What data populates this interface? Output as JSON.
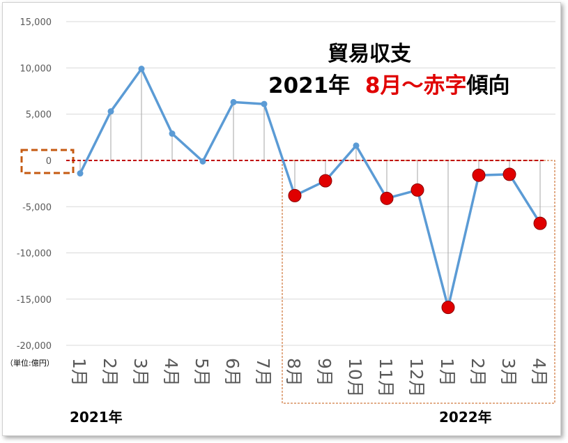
{
  "chart_data": {
    "type": "line",
    "title_line1": "貿易収支",
    "title_line2": {
      "part1": "2021年",
      "part2_red": "8月～赤字",
      "part3": "傾向"
    },
    "unit_label": "（単位:億円）",
    "categories": [
      "1月",
      "2月",
      "3月",
      "4月",
      "5月",
      "6月",
      "7月",
      "8月",
      "9月",
      "10月",
      "11月",
      "12月",
      "1月",
      "2月",
      "3月",
      "4月"
    ],
    "values": [
      -1400,
      5300,
      9900,
      2900,
      -100,
      6300,
      6100,
      -3800,
      -2200,
      1600,
      -4100,
      -3200,
      -15900,
      -1600,
      -1500,
      -6800
    ],
    "deficit_from_index": 7,
    "ylim": [
      -20000,
      15000
    ],
    "yticks": [
      15000,
      10000,
      5000,
      0,
      -5000,
      -10000,
      -15000,
      -20000
    ],
    "ytick_labels": [
      "15,000",
      "10,000",
      "5,000",
      "0",
      "-5,000",
      "-10,000",
      "-15,000",
      "-20,000"
    ],
    "year_labels": [
      "2021年",
      "2022年"
    ],
    "grid": true,
    "colors": {
      "line": "#5b9bd5",
      "deficit_marker": "#e00000",
      "zero_line": "#c00000",
      "highlight_box": "#c55a11",
      "grid": "#d9d9d9",
      "drop_line": "#a6a6a6"
    }
  }
}
